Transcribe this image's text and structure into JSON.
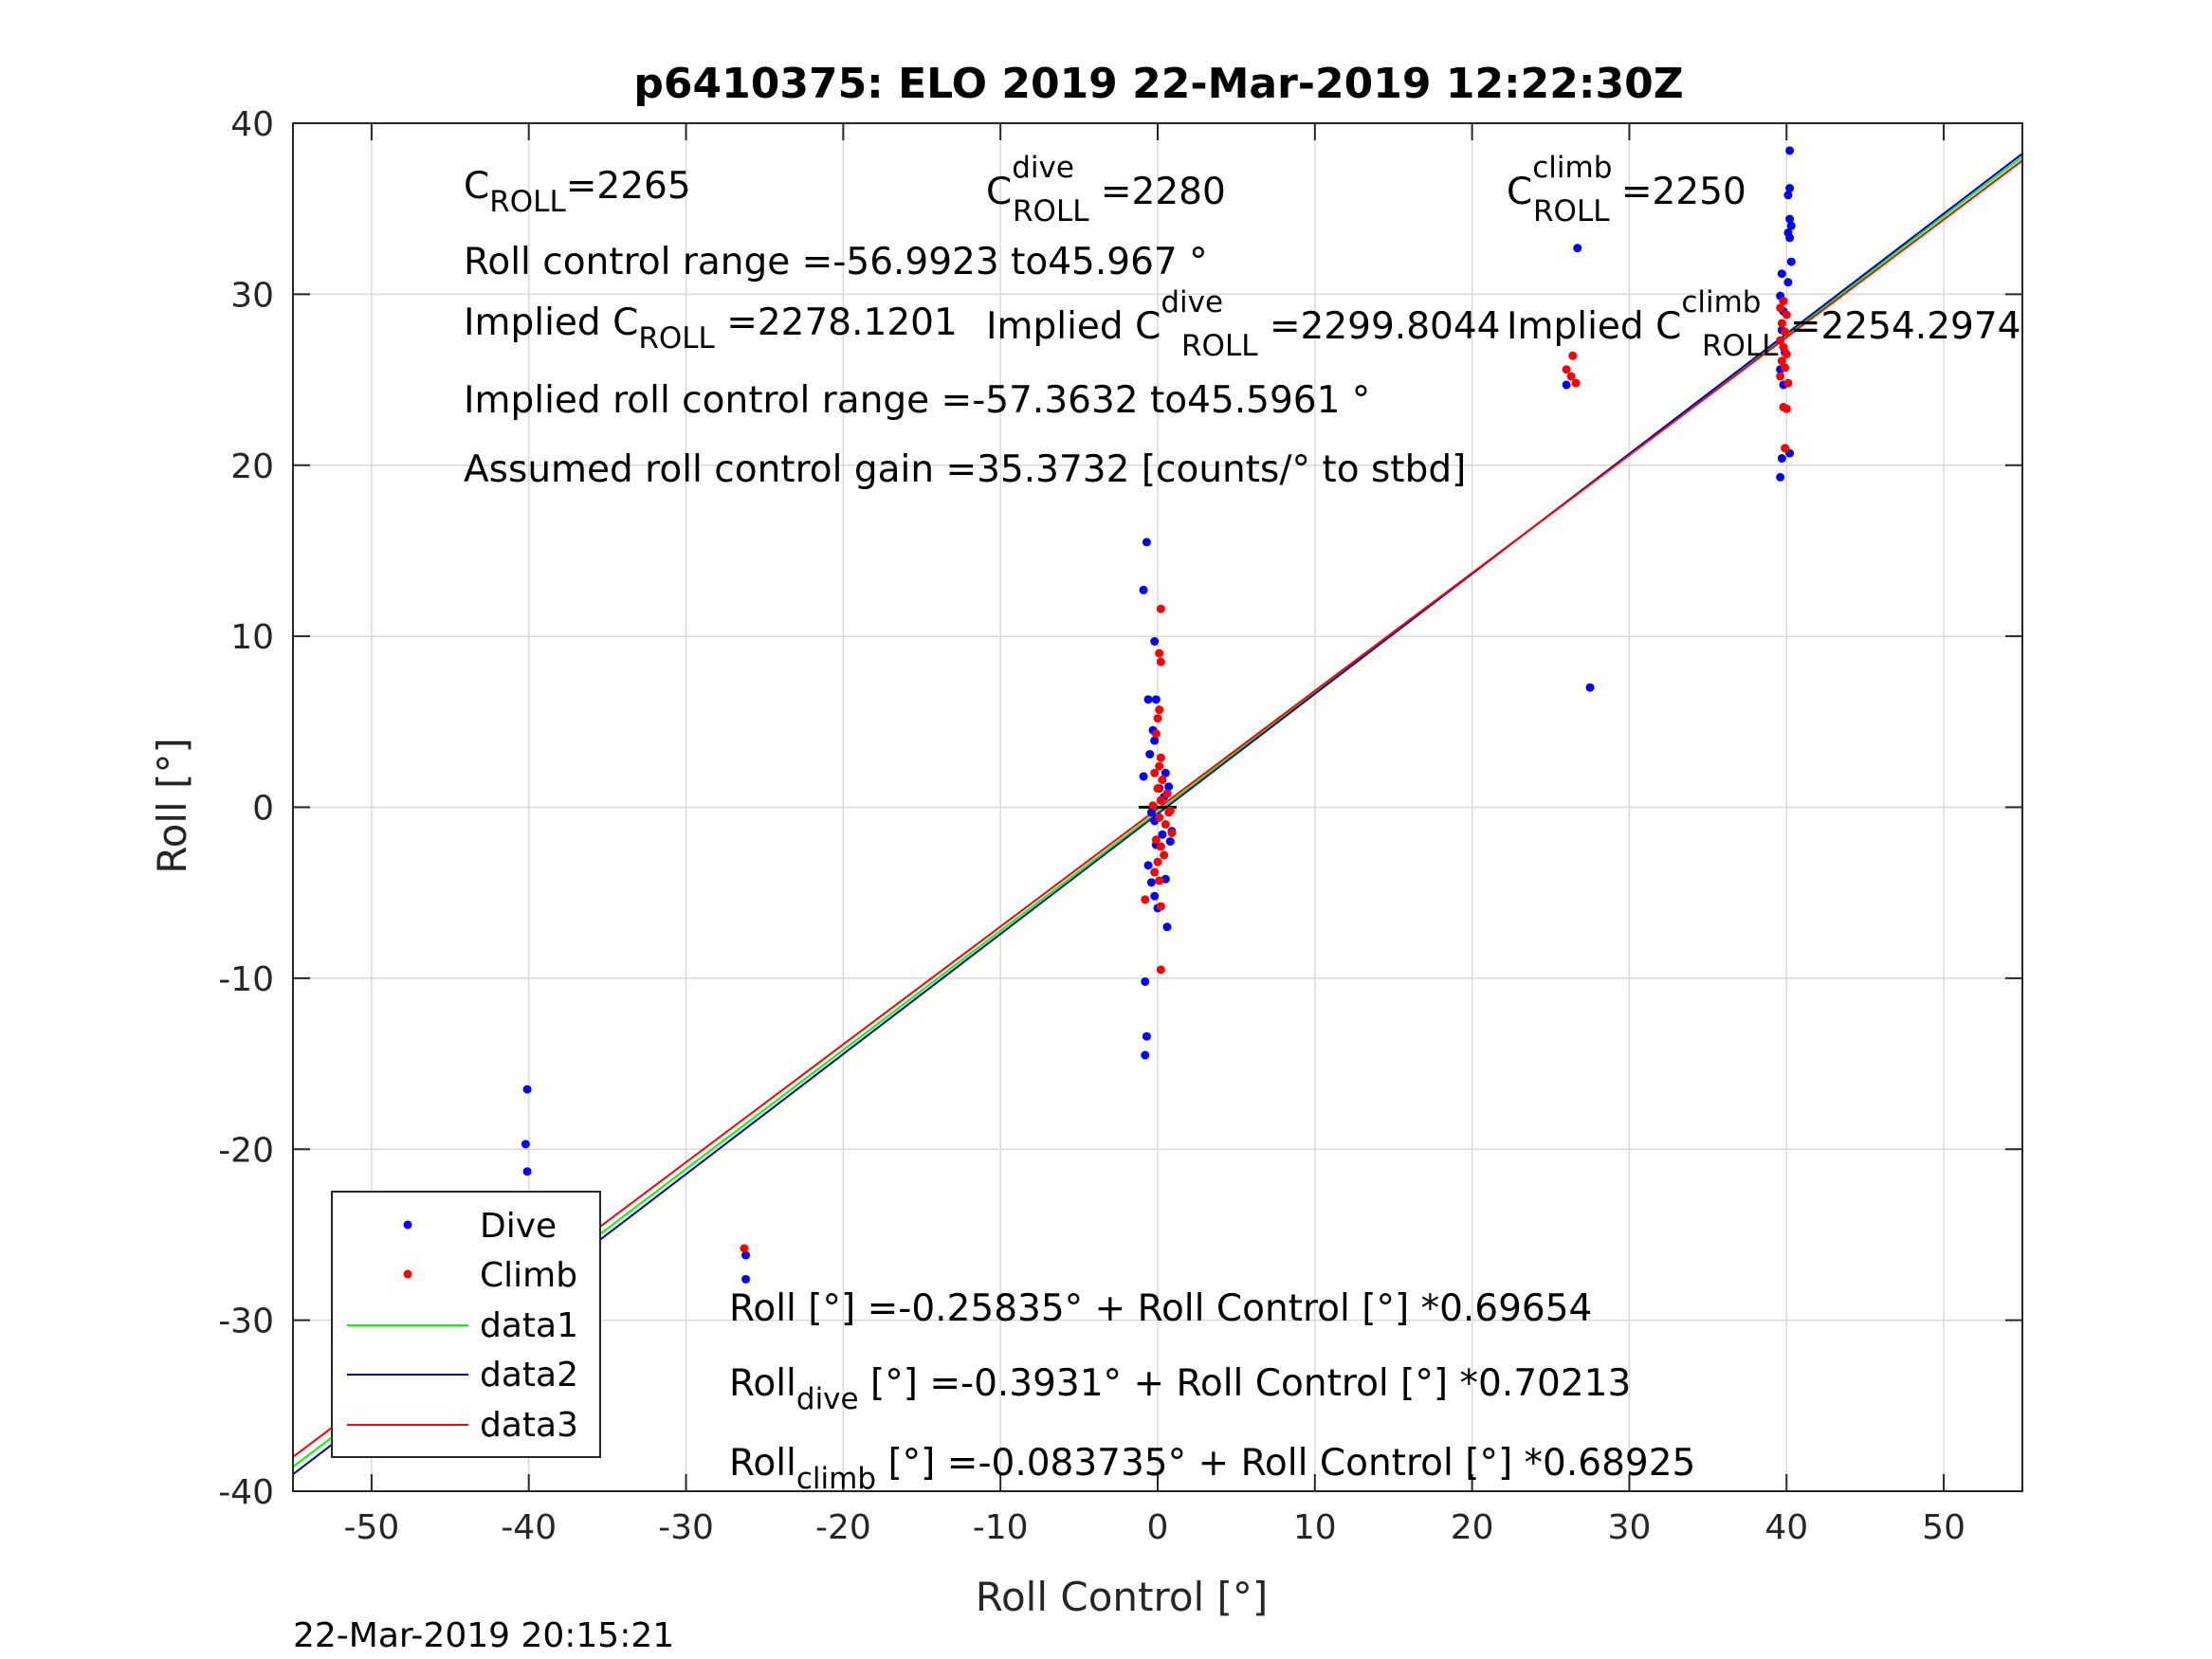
{
  "figure": {
    "footer_timestamp": "22-Mar-2019 20:15:21"
  },
  "annotations": {
    "c_roll": {
      "base": "C",
      "sub": "ROLL",
      "rest": "=2265"
    },
    "c_roll_dive": {
      "base": "C",
      "sup": "dive",
      "sub": "ROLL",
      "rest": " =2280"
    },
    "c_roll_climb": {
      "base": "C",
      "sup": "climb",
      "sub": "ROLL",
      "rest": " =2250"
    },
    "roll_control_range": "Roll control range =-56.9923 to45.967 °",
    "implied_c_roll": {
      "prefix": "Implied C",
      "sub": "ROLL",
      "rest": " =2278.1201"
    },
    "implied_c_roll_dive": {
      "prefix": "Implied C",
      "sup": "dive",
      "sub": "ROLL",
      "rest": " =2299.8044"
    },
    "implied_c_roll_climb": {
      "prefix": "Implied C",
      "sup": "climb",
      "sub": "ROLL",
      "rest": " =2254.2974"
    },
    "implied_roll_control_range": "Implied roll control range =-57.3632 to45.5961 °",
    "assumed_gain": "Assumed roll control gain =35.3732 [counts/° to stbd]",
    "fit_all": "Roll [°] =-0.25835° + Roll Control [°] *0.69654",
    "fit_dive": {
      "base": "Roll",
      "sub": "dive",
      "rest": " [°] =-0.3931° + Roll Control [°] *0.70213"
    },
    "fit_climb": {
      "base": "Roll",
      "sub": "climb",
      "rest": " [°] =-0.083735° + Roll Control [°] *0.68925"
    }
  },
  "colors": {
    "dive": "#0000ff",
    "climb": "#ff0000",
    "data1": "#00ff00",
    "data2": "#0000bb",
    "data3": "#ff0000",
    "grid": "#d9d9d9",
    "axis": "#262626"
  },
  "chart_data": {
    "type": "scatter",
    "title": "p6410375: ELO 2019 22-Mar-2019 12:22:30Z",
    "xlabel": "Roll Control [°]",
    "ylabel": "Roll [°]",
    "xlim": [
      -55,
      55
    ],
    "ylim": [
      -40,
      40
    ],
    "xticks": [
      -50,
      -40,
      -30,
      -20,
      -10,
      0,
      10,
      20,
      30,
      40,
      50
    ],
    "yticks": [
      -40,
      -30,
      -20,
      -10,
      0,
      10,
      20,
      30,
      40
    ],
    "grid": true,
    "legend_position": "bottom-left",
    "series": [
      {
        "name": "Dive",
        "kind": "points",
        "points": [
          [
            -40.1,
            -16.5
          ],
          [
            -40.2,
            -19.7
          ],
          [
            -40.1,
            -21.3
          ],
          [
            -40.3,
            -24.5
          ],
          [
            -40.0,
            -25.8
          ],
          [
            -40.2,
            -26.6
          ],
          [
            -39.9,
            -27.2
          ],
          [
            -40.2,
            -27.8
          ],
          [
            -40.0,
            -28.3
          ],
          [
            -39.8,
            -27.5
          ],
          [
            -26.2,
            -26.2
          ],
          [
            -26.2,
            -27.6
          ],
          [
            -0.7,
            15.5
          ],
          [
            -0.9,
            12.7
          ],
          [
            -0.2,
            9.7
          ],
          [
            -0.6,
            6.3
          ],
          [
            -0.1,
            6.3
          ],
          [
            -0.3,
            4.5
          ],
          [
            -0.2,
            3.9
          ],
          [
            -0.5,
            3.1
          ],
          [
            -0.9,
            1.8
          ],
          [
            0.5,
            2.0
          ],
          [
            0.1,
            1.1
          ],
          [
            0.7,
            1.2
          ],
          [
            0.4,
            0.6
          ],
          [
            -0.4,
            -0.3
          ],
          [
            -0.2,
            -0.8
          ],
          [
            0.3,
            -1.6
          ],
          [
            -0.1,
            -2.2
          ],
          [
            -0.6,
            -3.4
          ],
          [
            0.5,
            -4.2
          ],
          [
            -0.4,
            -4.4
          ],
          [
            -0.2,
            -5.2
          ],
          [
            0.0,
            -5.9
          ],
          [
            0.6,
            -7.0
          ],
          [
            -0.8,
            -10.2
          ],
          [
            -0.7,
            -13.4
          ],
          [
            -0.8,
            -14.5
          ],
          [
            0.9,
            -1.4
          ],
          [
            0.8,
            -2.0
          ],
          [
            26.7,
            32.7
          ],
          [
            26.0,
            24.7
          ],
          [
            27.5,
            7.0
          ],
          [
            40.2,
            38.4
          ],
          [
            40.2,
            36.2
          ],
          [
            40.1,
            35.8
          ],
          [
            40.2,
            34.4
          ],
          [
            40.3,
            34.0
          ],
          [
            40.1,
            33.6
          ],
          [
            40.2,
            33.3
          ],
          [
            40.3,
            31.9
          ],
          [
            39.7,
            31.2
          ],
          [
            40.1,
            30.7
          ],
          [
            39.6,
            29.9
          ],
          [
            39.8,
            29.0
          ],
          [
            39.7,
            27.9
          ],
          [
            39.9,
            26.6
          ],
          [
            39.6,
            25.6
          ],
          [
            39.8,
            24.7
          ],
          [
            40.2,
            20.7
          ],
          [
            39.7,
            20.4
          ],
          [
            39.6,
            19.3
          ]
        ]
      },
      {
        "name": "Climb",
        "kind": "points",
        "points": [
          [
            -39.8,
            -25.2
          ],
          [
            -40.1,
            -25.9
          ],
          [
            -39.7,
            -26.8
          ],
          [
            -40.3,
            -27.3
          ],
          [
            -39.9,
            -27.9
          ],
          [
            -40.2,
            -28.4
          ],
          [
            -39.8,
            -28.9
          ],
          [
            -40.0,
            -31.3
          ],
          [
            -39.7,
            -30.3
          ],
          [
            -26.3,
            -25.8
          ],
          [
            0.2,
            11.6
          ],
          [
            0.1,
            9.0
          ],
          [
            0.2,
            8.5
          ],
          [
            0.1,
            5.7
          ],
          [
            0.0,
            5.2
          ],
          [
            -0.1,
            4.3
          ],
          [
            0.2,
            2.9
          ],
          [
            0.1,
            2.4
          ],
          [
            -0.2,
            2.0
          ],
          [
            0.3,
            1.6
          ],
          [
            0.0,
            1.1
          ],
          [
            0.6,
            0.8
          ],
          [
            0.2,
            0.4
          ],
          [
            -0.3,
            0.1
          ],
          [
            0.8,
            -0.2
          ],
          [
            0.1,
            -0.6
          ],
          [
            0.5,
            -1.0
          ],
          [
            0.9,
            -1.5
          ],
          [
            -0.1,
            -1.9
          ],
          [
            0.2,
            -2.3
          ],
          [
            0.4,
            -2.8
          ],
          [
            0.0,
            -3.2
          ],
          [
            -0.2,
            -3.8
          ],
          [
            0.1,
            -4.3
          ],
          [
            -0.8,
            -5.4
          ],
          [
            0.2,
            -5.8
          ],
          [
            0.2,
            -9.5
          ],
          [
            0.7,
            -0.3
          ],
          [
            26.0,
            25.6
          ],
          [
            26.3,
            25.2
          ],
          [
            26.6,
            24.8
          ],
          [
            26.4,
            26.4
          ],
          [
            39.8,
            29.6
          ],
          [
            39.6,
            29.2
          ],
          [
            40.0,
            28.8
          ],
          [
            39.7,
            28.3
          ],
          [
            39.9,
            27.8
          ],
          [
            39.6,
            27.3
          ],
          [
            39.8,
            26.9
          ],
          [
            40.0,
            26.5
          ],
          [
            39.7,
            26.1
          ],
          [
            39.9,
            25.7
          ],
          [
            39.6,
            25.2
          ],
          [
            40.1,
            24.8
          ],
          [
            39.8,
            23.4
          ],
          [
            40.0,
            23.3
          ],
          [
            39.9,
            21.0
          ]
        ]
      },
      {
        "name": "data1",
        "kind": "line",
        "x": [
          -55,
          55
        ],
        "intercept": -0.25835,
        "slope": 0.69654
      },
      {
        "name": "data2",
        "kind": "line",
        "x": [
          -55,
          55
        ],
        "intercept": -0.3931,
        "slope": 0.70213
      },
      {
        "name": "data3",
        "kind": "line",
        "x": [
          -55,
          55
        ],
        "intercept": -0.083735,
        "slope": 0.68925
      }
    ]
  }
}
